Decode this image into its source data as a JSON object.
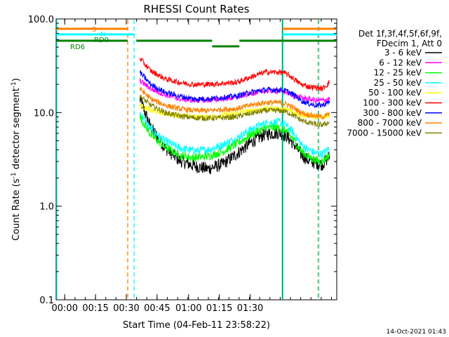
{
  "chart_data": {
    "type": "line",
    "title": "RHESSI Count Rates",
    "xlabel": "Start Time (04-Feb-11 23:58:22)",
    "ylabel_main": "Count Rate (s",
    "ylabel_sup1": "-1",
    "ylabel_mid": " detector segment",
    "ylabel_sup2": "-1",
    "ylabel_end": ")",
    "y_scale": "log",
    "ylim": [
      0.1,
      100
    ],
    "xlim_minutes": [
      -1.2,
      38.0
    ],
    "x_ticks": [
      {
        "label": "00:00",
        "value": 0
      },
      {
        "label": "00:15",
        "value": 4.3
      },
      {
        "label": "00:30",
        "value": 8.6
      },
      {
        "label": "00:45",
        "value": 12.9
      },
      {
        "label": "01:00",
        "value": 17.3
      },
      {
        "label": "01:15",
        "value": 21.6
      },
      {
        "label": "01:30",
        "value": 25.9
      }
    ],
    "y_ticks": [
      {
        "label": "0.1",
        "value": 0.1
      },
      {
        "label": "1.0",
        "value": 1.0
      },
      {
        "label": "10.0",
        "value": 10.0
      },
      {
        "label": "100.0",
        "value": 100.0
      }
    ],
    "legend": {
      "position": "right",
      "header": [
        "Det 1f,3f,4f,5f,6f,9f,",
        "FDecim 1, Att 0"
      ],
      "entries": [
        {
          "label": "3 - 6 keV",
          "color": "#000000"
        },
        {
          "label": "6 - 12 keV",
          "color": "#ff00ff"
        },
        {
          "label": "12 - 25 keV",
          "color": "#00ff00"
        },
        {
          "label": "25 - 50 keV",
          "color": "#00ffff"
        },
        {
          "label": "50 - 100 keV",
          "color": "#ffff00"
        },
        {
          "label": "100 - 300 keV",
          "color": "#ff0000"
        },
        {
          "label": "300 - 800 keV",
          "color": "#0000ff"
        },
        {
          "label": "800 - 7000 keV",
          "color": "#ff8000"
        },
        {
          "label": "7000 - 15000 keV",
          "color": "#808000"
        }
      ]
    },
    "series": [
      {
        "name": "3 - 6 keV",
        "color": "#000000",
        "x": [
          10.5,
          12,
          14,
          16,
          18,
          20,
          22,
          24,
          26,
          28,
          30,
          31,
          32,
          33,
          34,
          35,
          36,
          37
        ],
        "y": [
          14,
          7,
          4.2,
          3.1,
          2.7,
          2.5,
          2.8,
          3.6,
          4.8,
          5.9,
          6.1,
          5.6,
          4.6,
          3.6,
          3.1,
          2.9,
          2.8,
          3.4
        ]
      },
      {
        "name": "6 - 12 keV",
        "color": "#ff00ff",
        "x": [
          10.5,
          12,
          14,
          16,
          18,
          20,
          22,
          24,
          26,
          28,
          30,
          31,
          32,
          33,
          34,
          35,
          36,
          37
        ],
        "y": [
          22,
          18,
          15.5,
          14,
          13.5,
          13.5,
          14,
          14.5,
          16,
          17,
          17,
          16.5,
          15,
          14.5,
          14,
          13.5,
          13.5,
          14
        ]
      },
      {
        "name": "12 - 25 keV",
        "color": "#00ff00",
        "x": [
          10.5,
          12,
          14,
          16,
          18,
          20,
          22,
          24,
          26,
          28,
          30,
          31,
          32,
          33,
          34,
          35,
          36,
          37
        ],
        "y": [
          9,
          5.8,
          4.3,
          3.5,
          3.3,
          3.4,
          3.8,
          4.6,
          5.8,
          6.8,
          6.9,
          6.3,
          5.1,
          3.9,
          3.4,
          3.1,
          3.0,
          3.6
        ]
      },
      {
        "name": "25 - 50 keV",
        "color": "#00ffff",
        "x": [
          10.5,
          12,
          14,
          16,
          18,
          20,
          22,
          24,
          26,
          28,
          30,
          31,
          32,
          33,
          34,
          35,
          36,
          37
        ],
        "y": [
          10,
          6.6,
          5.0,
          4.2,
          3.9,
          4.0,
          4.5,
          5.3,
          6.6,
          7.7,
          7.9,
          7.3,
          6.0,
          4.6,
          4.0,
          3.7,
          3.6,
          4.2
        ]
      },
      {
        "name": "50 - 100 keV",
        "color": "#ffff00",
        "x": [
          10.5,
          12,
          14,
          16,
          18,
          20,
          22,
          24,
          26,
          28,
          30,
          31,
          32,
          33,
          34,
          35,
          36,
          37
        ],
        "y": [
          12,
          10.5,
          9.8,
          9.3,
          9.0,
          9.0,
          9.3,
          9.8,
          10.5,
          11,
          11,
          10.8,
          10,
          9.5,
          9.3,
          9.0,
          9.0,
          9.5
        ]
      },
      {
        "name": "100 - 300 keV",
        "color": "#ff0000",
        "x": [
          10.5,
          12,
          14,
          16,
          18,
          20,
          22,
          24,
          26,
          28,
          30,
          31,
          32,
          33,
          34,
          35,
          36,
          37
        ],
        "y": [
          38,
          28,
          23,
          21,
          20,
          20,
          20.5,
          21,
          24,
          27,
          27,
          26,
          23,
          20,
          19,
          18.5,
          18,
          21
        ]
      },
      {
        "name": "300 - 800 keV",
        "color": "#0000ff",
        "x": [
          10.5,
          12,
          14,
          16,
          18,
          20,
          22,
          24,
          26,
          28,
          30,
          31,
          32,
          33,
          34,
          35,
          36,
          37
        ],
        "y": [
          27,
          20,
          16.5,
          15,
          14,
          14,
          14.5,
          15,
          16.5,
          17.5,
          17.5,
          17,
          15.5,
          13.5,
          12.5,
          12,
          12,
          13
        ]
      },
      {
        "name": "800 - 7000 keV",
        "color": "#ff8000",
        "x": [
          10.5,
          12,
          14,
          16,
          18,
          20,
          22,
          24,
          26,
          28,
          30,
          31,
          32,
          33,
          34,
          35,
          36,
          37
        ],
        "y": [
          18,
          14,
          12,
          11,
          10.5,
          10.5,
          10.8,
          11,
          12,
          12.8,
          12.8,
          12.3,
          11.2,
          10,
          9.5,
          9.2,
          9.0,
          9.6
        ]
      },
      {
        "name": "7000 - 15000 keV",
        "color": "#808000",
        "x": [
          10.5,
          12,
          14,
          16,
          18,
          20,
          22,
          24,
          26,
          28,
          30,
          31,
          32,
          33,
          34,
          35,
          36,
          37
        ],
        "y": [
          15,
          12,
          10,
          9.2,
          8.8,
          8.7,
          8.8,
          9.0,
          9.8,
          10.5,
          10.5,
          10.2,
          9.3,
          8.3,
          7.8,
          7.5,
          7.4,
          7.9
        ]
      }
    ],
    "annotations": [
      {
        "label": "S",
        "color": "#ff8000",
        "bars_minutes": [
          [
            -1.2,
            8.8
          ],
          [
            30.4,
            38.0
          ]
        ],
        "level": "top"
      },
      {
        "label": "N",
        "color": "#00ffff",
        "bars_minutes": [
          [
            -1.2,
            9.7
          ],
          [
            30.4,
            38.0
          ]
        ],
        "level": "second"
      },
      {
        "label": "RD6",
        "color": "#008000",
        "bars_minutes": [
          [
            -1.2,
            8.8
          ],
          [
            30.4,
            38.0
          ]
        ],
        "level": "third"
      },
      {
        "label": "RD0",
        "color": "#008000",
        "bars_minutes": [
          [
            10.0,
            11.4
          ],
          [
            11.4,
            20.6
          ],
          [
            20.6,
            24.4
          ],
          [
            24.4,
            30.4
          ]
        ],
        "level": "third"
      }
    ],
    "vertical_lines_minutes": [
      {
        "minute": -1.1,
        "color": "#00ffff",
        "style": "solid"
      },
      {
        "minute": 8.8,
        "color": "#ff8000",
        "style": "dashed"
      },
      {
        "minute": 9.7,
        "color": "#00ffff",
        "style": "dashed"
      },
      {
        "minute": 30.4,
        "color": "#008000",
        "style": "solid"
      },
      {
        "minute": 30.5,
        "color": "#00ffff",
        "style": "solid"
      },
      {
        "minute": 35.4,
        "color": "#ff8000",
        "style": "dashed"
      },
      {
        "minute": 35.5,
        "color": "#00ffff",
        "style": "dashed"
      }
    ],
    "grid": false
  },
  "timestamp": "14-Oct-2021 01:43"
}
